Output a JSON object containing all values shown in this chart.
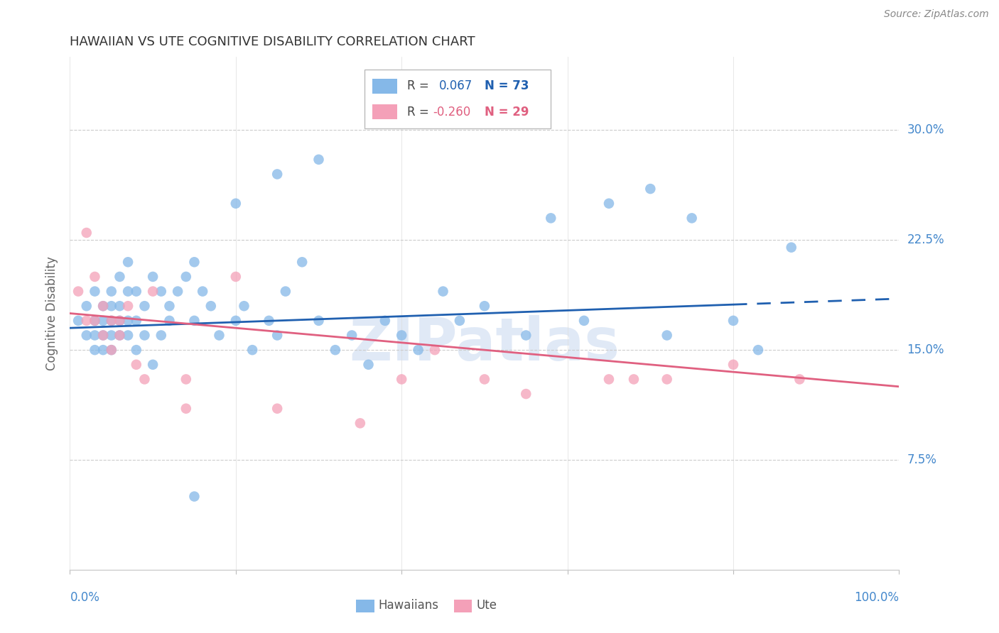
{
  "title": "HAWAIIAN VS UTE COGNITIVE DISABILITY CORRELATION CHART",
  "source": "Source: ZipAtlas.com",
  "ylabel": "Cognitive Disability",
  "ytick_labels": [
    "7.5%",
    "15.0%",
    "22.5%",
    "30.0%"
  ],
  "ytick_values": [
    0.075,
    0.15,
    0.225,
    0.3
  ],
  "xlim": [
    0.0,
    1.0
  ],
  "ylim": [
    0.0,
    0.35
  ],
  "hawaiian_color": "#85b8e8",
  "ute_color": "#f4a0b8",
  "hawaiian_line_color": "#2060b0",
  "ute_line_color": "#e06080",
  "watermark": "ZIPatlas",
  "hawaiian_x": [
    0.01,
    0.02,
    0.02,
    0.03,
    0.03,
    0.03,
    0.03,
    0.04,
    0.04,
    0.04,
    0.04,
    0.05,
    0.05,
    0.05,
    0.05,
    0.05,
    0.06,
    0.06,
    0.06,
    0.06,
    0.07,
    0.07,
    0.07,
    0.07,
    0.08,
    0.08,
    0.08,
    0.09,
    0.09,
    0.1,
    0.1,
    0.11,
    0.11,
    0.12,
    0.12,
    0.13,
    0.14,
    0.15,
    0.15,
    0.16,
    0.17,
    0.18,
    0.2,
    0.21,
    0.22,
    0.24,
    0.25,
    0.26,
    0.28,
    0.3,
    0.32,
    0.34,
    0.36,
    0.38,
    0.4,
    0.42,
    0.45,
    0.47,
    0.5,
    0.55,
    0.58,
    0.62,
    0.65,
    0.7,
    0.72,
    0.75,
    0.8,
    0.83,
    0.87,
    0.25,
    0.3,
    0.2,
    0.15
  ],
  "hawaiian_y": [
    0.17,
    0.18,
    0.16,
    0.19,
    0.17,
    0.16,
    0.15,
    0.18,
    0.17,
    0.16,
    0.15,
    0.19,
    0.18,
    0.17,
    0.16,
    0.15,
    0.2,
    0.18,
    0.17,
    0.16,
    0.21,
    0.19,
    0.17,
    0.16,
    0.19,
    0.17,
    0.15,
    0.18,
    0.16,
    0.2,
    0.14,
    0.19,
    0.16,
    0.18,
    0.17,
    0.19,
    0.2,
    0.21,
    0.17,
    0.19,
    0.18,
    0.16,
    0.17,
    0.18,
    0.15,
    0.17,
    0.16,
    0.19,
    0.21,
    0.17,
    0.15,
    0.16,
    0.14,
    0.17,
    0.16,
    0.15,
    0.19,
    0.17,
    0.18,
    0.16,
    0.24,
    0.17,
    0.25,
    0.26,
    0.16,
    0.24,
    0.17,
    0.15,
    0.22,
    0.27,
    0.28,
    0.25,
    0.05
  ],
  "ute_x": [
    0.01,
    0.02,
    0.02,
    0.03,
    0.03,
    0.04,
    0.04,
    0.05,
    0.05,
    0.06,
    0.06,
    0.07,
    0.08,
    0.09,
    0.1,
    0.14,
    0.14,
    0.2,
    0.25,
    0.35,
    0.4,
    0.44,
    0.5,
    0.55,
    0.65,
    0.68,
    0.72,
    0.8,
    0.88
  ],
  "ute_y": [
    0.19,
    0.17,
    0.23,
    0.2,
    0.17,
    0.18,
    0.16,
    0.17,
    0.15,
    0.17,
    0.16,
    0.18,
    0.14,
    0.13,
    0.19,
    0.13,
    0.11,
    0.2,
    0.11,
    0.1,
    0.13,
    0.15,
    0.13,
    0.12,
    0.13,
    0.13,
    0.13,
    0.14,
    0.13
  ],
  "hawaiian_line_x0": 0.0,
  "hawaiian_line_x1": 1.0,
  "hawaiian_line_y0": 0.165,
  "hawaiian_line_y1": 0.185,
  "hawaiian_line_solid_end": 0.8,
  "ute_line_x0": 0.0,
  "ute_line_x1": 1.0,
  "ute_line_y0": 0.175,
  "ute_line_y1": 0.125
}
